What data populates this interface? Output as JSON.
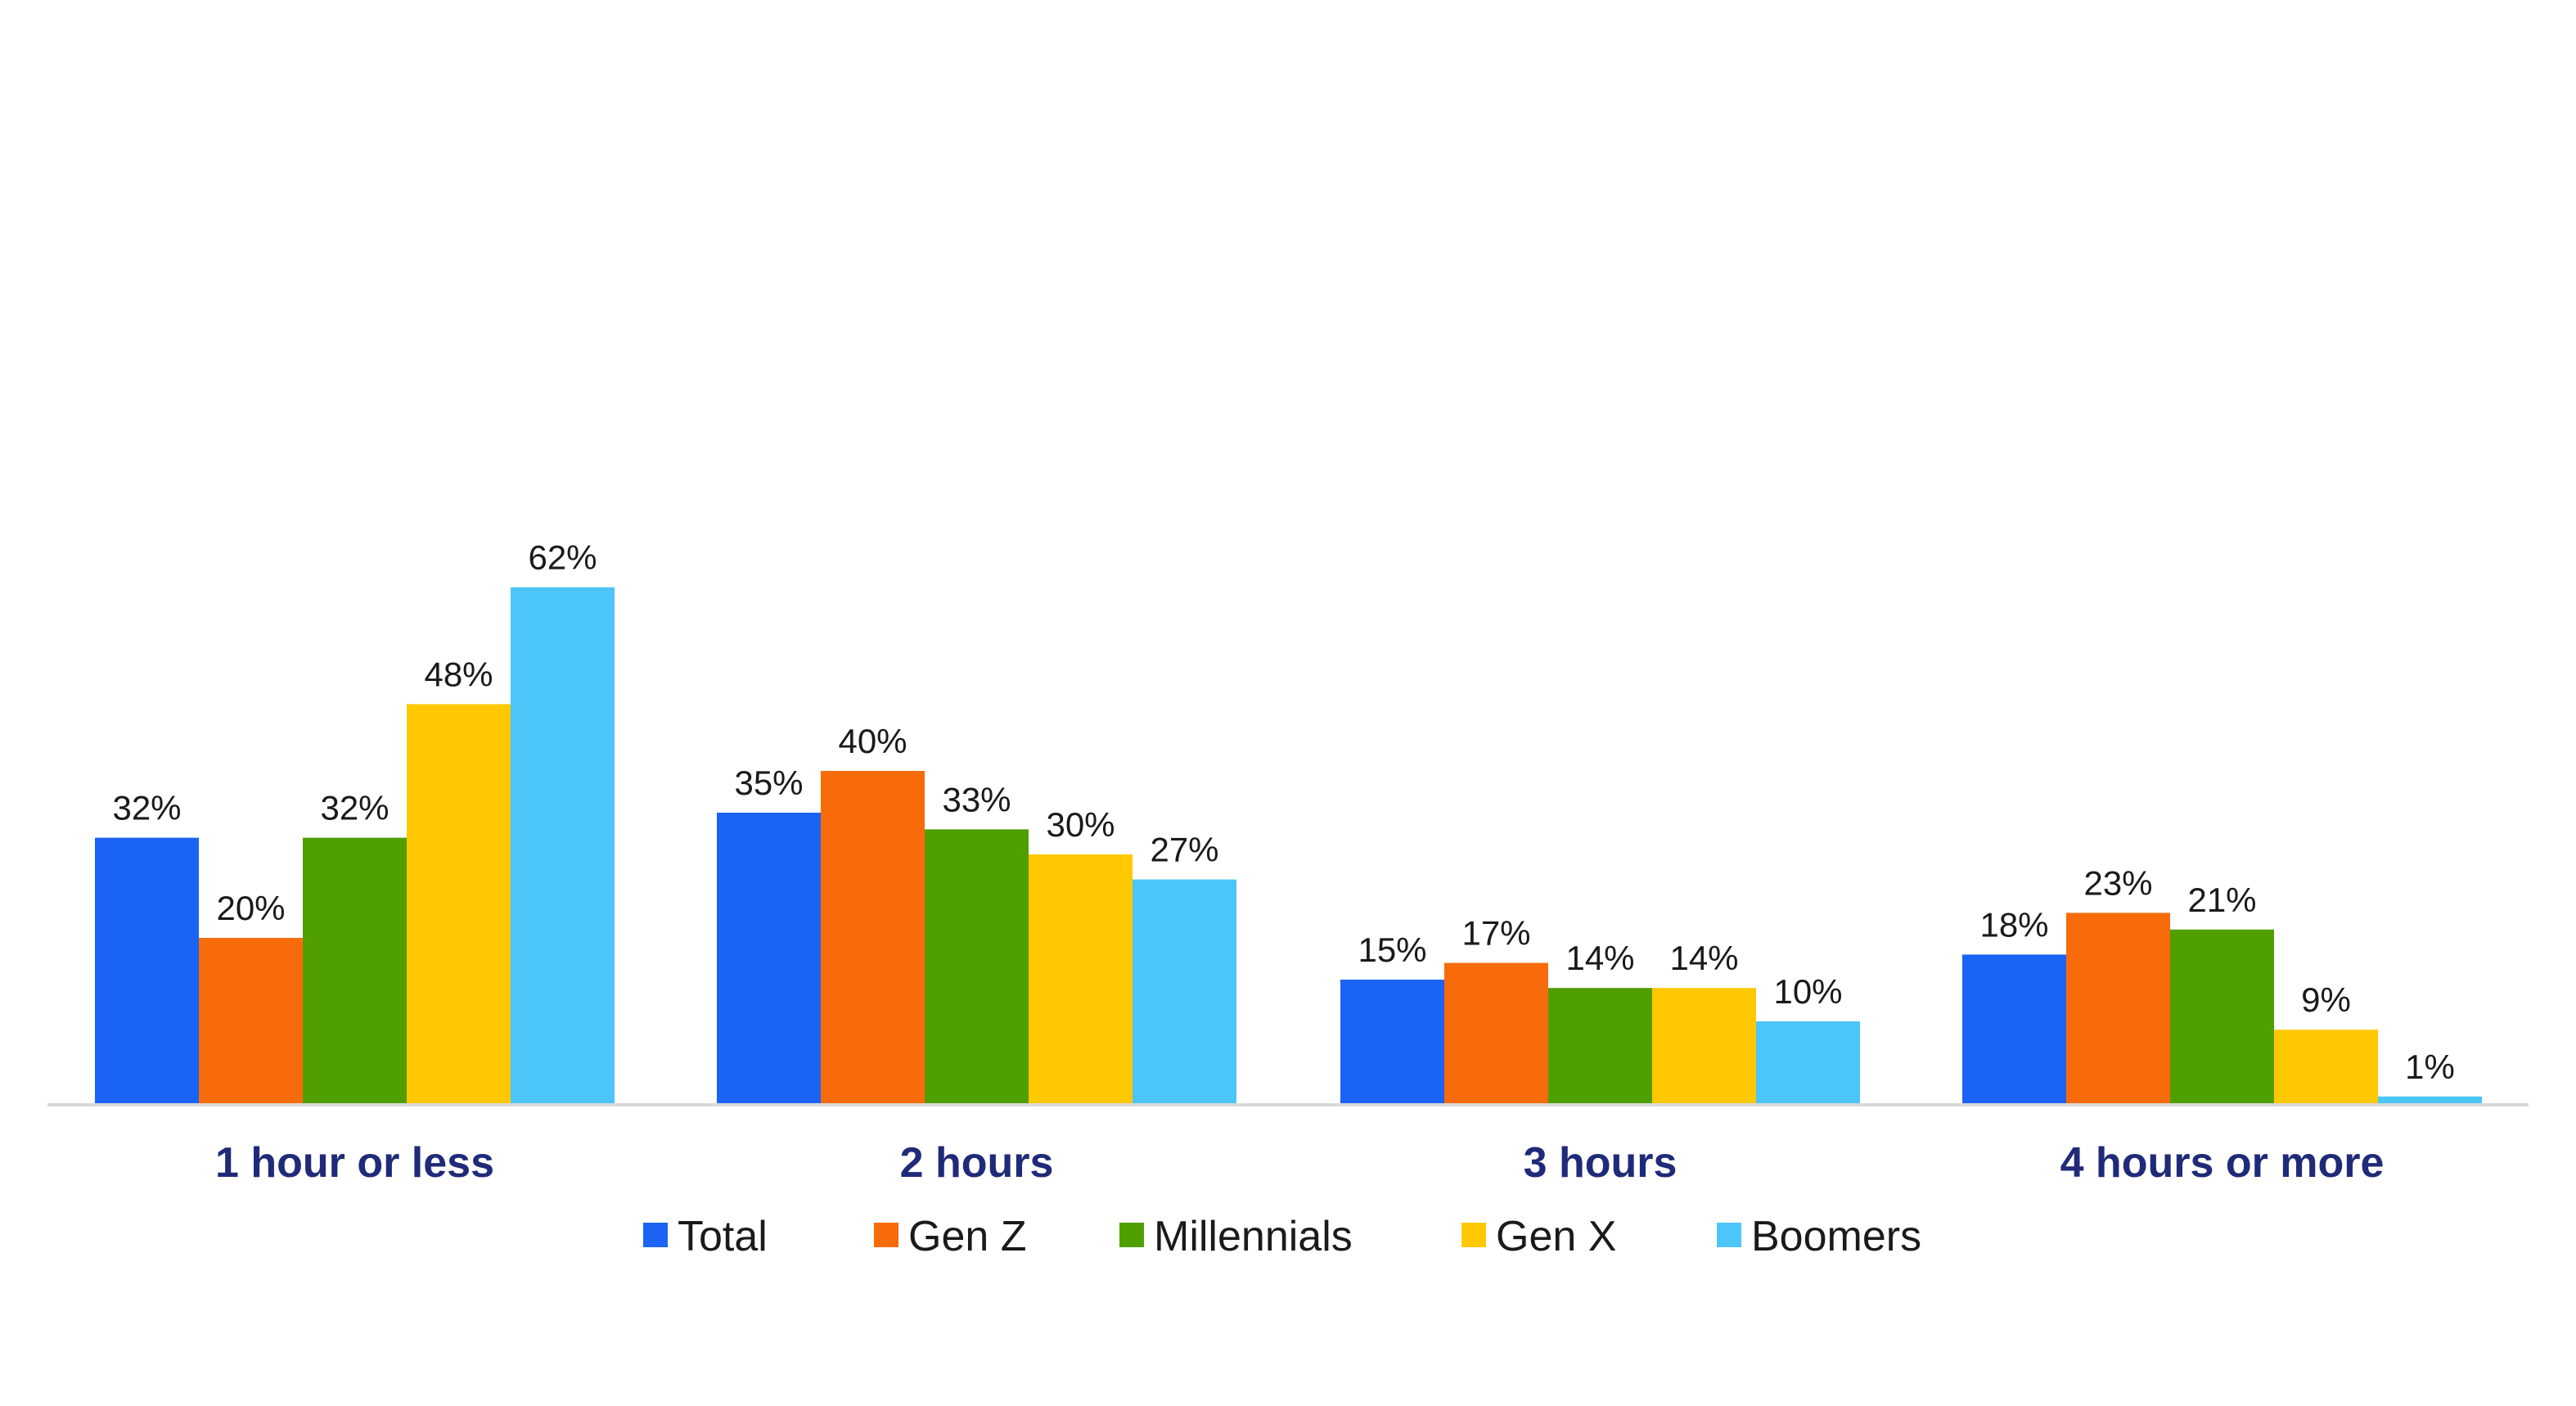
{
  "chart_data": {
    "type": "bar",
    "categories": [
      "1 hour or less",
      "2 hours",
      "3 hours",
      "4 hours or more"
    ],
    "series": [
      {
        "name": "Total",
        "color": "#1b63f5",
        "values": [
          32,
          35,
          15,
          18
        ],
        "labels": [
          "32%",
          "35%",
          "15%",
          "18%"
        ]
      },
      {
        "name": "Gen Z",
        "color": "#f86b0b",
        "values": [
          20,
          40,
          17,
          23
        ],
        "labels": [
          "20%",
          "40%",
          "17%",
          "23%"
        ]
      },
      {
        "name": "Millennials",
        "color": "#4f9f00",
        "values": [
          32,
          33,
          14,
          21
        ],
        "labels": [
          "32%",
          "33%",
          "14%",
          "21%"
        ]
      },
      {
        "name": "Gen X",
        "color": "#ffc800",
        "values": [
          48,
          30,
          14,
          9
        ],
        "labels": [
          "48%",
          "30%",
          "14%",
          "9%"
        ]
      },
      {
        "name": "Boomers",
        "color": "#4cc5f8",
        "values": [
          62,
          27,
          10,
          1
        ],
        "labels": [
          "62%",
          "27%",
          "10%",
          "1%"
        ]
      }
    ],
    "ylim": [
      0,
      64
    ],
    "grid": false,
    "legend_position": "bottom"
  }
}
